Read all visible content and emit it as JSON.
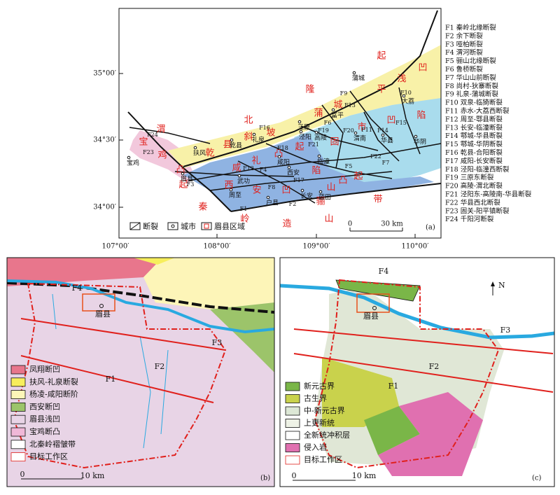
{
  "panel_a": {
    "lat_labels": [
      "35°00′",
      "34°30′",
      "34°00′"
    ],
    "lon_labels": [
      "107°00′",
      "108°00′",
      "109°00′",
      "110°00′"
    ],
    "fault_list": [
      "F1 秦岭北缘断裂",
      "F2 余下断裂",
      "F3 哑柏断裂",
      "F4 渭河断裂",
      "F5 骊山北缘断裂",
      "F6 鲁桥断裂",
      "F7 华山山前断裂",
      "F8 尚村-狄寨断裂",
      "F9 礼泉-蒲城断裂",
      "F10 双泉-临猗断裂",
      "F11 赤水-大荔西断裂",
      "F12 周至-鄠县断裂",
      "F13 长安-临潼断裂",
      "F14 鄠城-华县断裂",
      "F15 鄠城-华阴断裂",
      "F16 乾县-合阳断裂",
      "F17 咸阳-长安断裂",
      "F18 泾阳-临潼西断裂",
      "F19 三原东断裂",
      "F20 高陵-渭北断裂",
      "F21 泾阳东-高陵南-华县断裂",
      "F22 华县西北断裂",
      "F23 固关-阳平镇断裂",
      "F24 千阳河断裂"
    ],
    "region_characters": [
      "渭",
      "北",
      "隆",
      "起",
      "宝",
      "鸡",
      "凸",
      "起",
      "乾",
      "县",
      "斜",
      "坡",
      "蒲",
      "城",
      "平",
      "浅",
      "凹",
      "固",
      "市",
      "凹",
      "陷",
      "咸",
      "礼",
      "凸",
      "起",
      "西",
      "安",
      "凹",
      "陷",
      "骊",
      "山",
      "凸",
      "起",
      "秦",
      "岭",
      "造",
      "山",
      "带"
    ],
    "cities": [
      "宝鸡",
      "扶风",
      "眉县",
      "武功",
      "乾县",
      "礼泉",
      "咸阳",
      "泾阳",
      "高陵",
      "西安",
      "临潼",
      "蓝田",
      "户县",
      "周至",
      "长安",
      "渭南",
      "华县",
      "华阴",
      "富平",
      "蒲城",
      "大荔",
      "三原"
    ],
    "fault_labels": [
      "F1",
      "F2",
      "F3",
      "F4",
      "F5",
      "F6",
      "F7",
      "F8",
      "F9",
      "F10",
      "F11",
      "F12",
      "F13",
      "F14",
      "F15",
      "F16",
      "F17",
      "F18",
      "F19",
      "F20",
      "F21",
      "F22",
      "F23",
      "F24"
    ],
    "legend": [
      "断裂",
      "城市",
      "眉县区域"
    ],
    "scale": [
      "0",
      "30 km"
    ],
    "panel_label": "(a)"
  },
  "panel_b": {
    "legend": [
      "凤翔断凹",
      "扶风-礼泉断裂",
      "杨凌-咸阳断阶",
      "西安断凹",
      "眉县浅凹",
      "宝鸡断凸",
      "北秦岭褶皱带",
      "目标工作区"
    ],
    "fault_labels": [
      "F4",
      "F3",
      "F2",
      "F1"
    ],
    "city": "眉县",
    "scale": [
      "0",
      "10 km"
    ],
    "panel_label": "(b)"
  },
  "panel_c": {
    "legend": [
      "新元古界",
      "古生界",
      "中-新元古界",
      "上更新统",
      "全新统冲积层",
      "侵入岩",
      "目标工作区"
    ],
    "fault_labels": [
      "F4",
      "F3",
      "F2",
      "F1"
    ],
    "city": "眉县",
    "north": "N",
    "scale": [
      "0",
      "10 km"
    ],
    "panel_label": "(c)"
  }
}
